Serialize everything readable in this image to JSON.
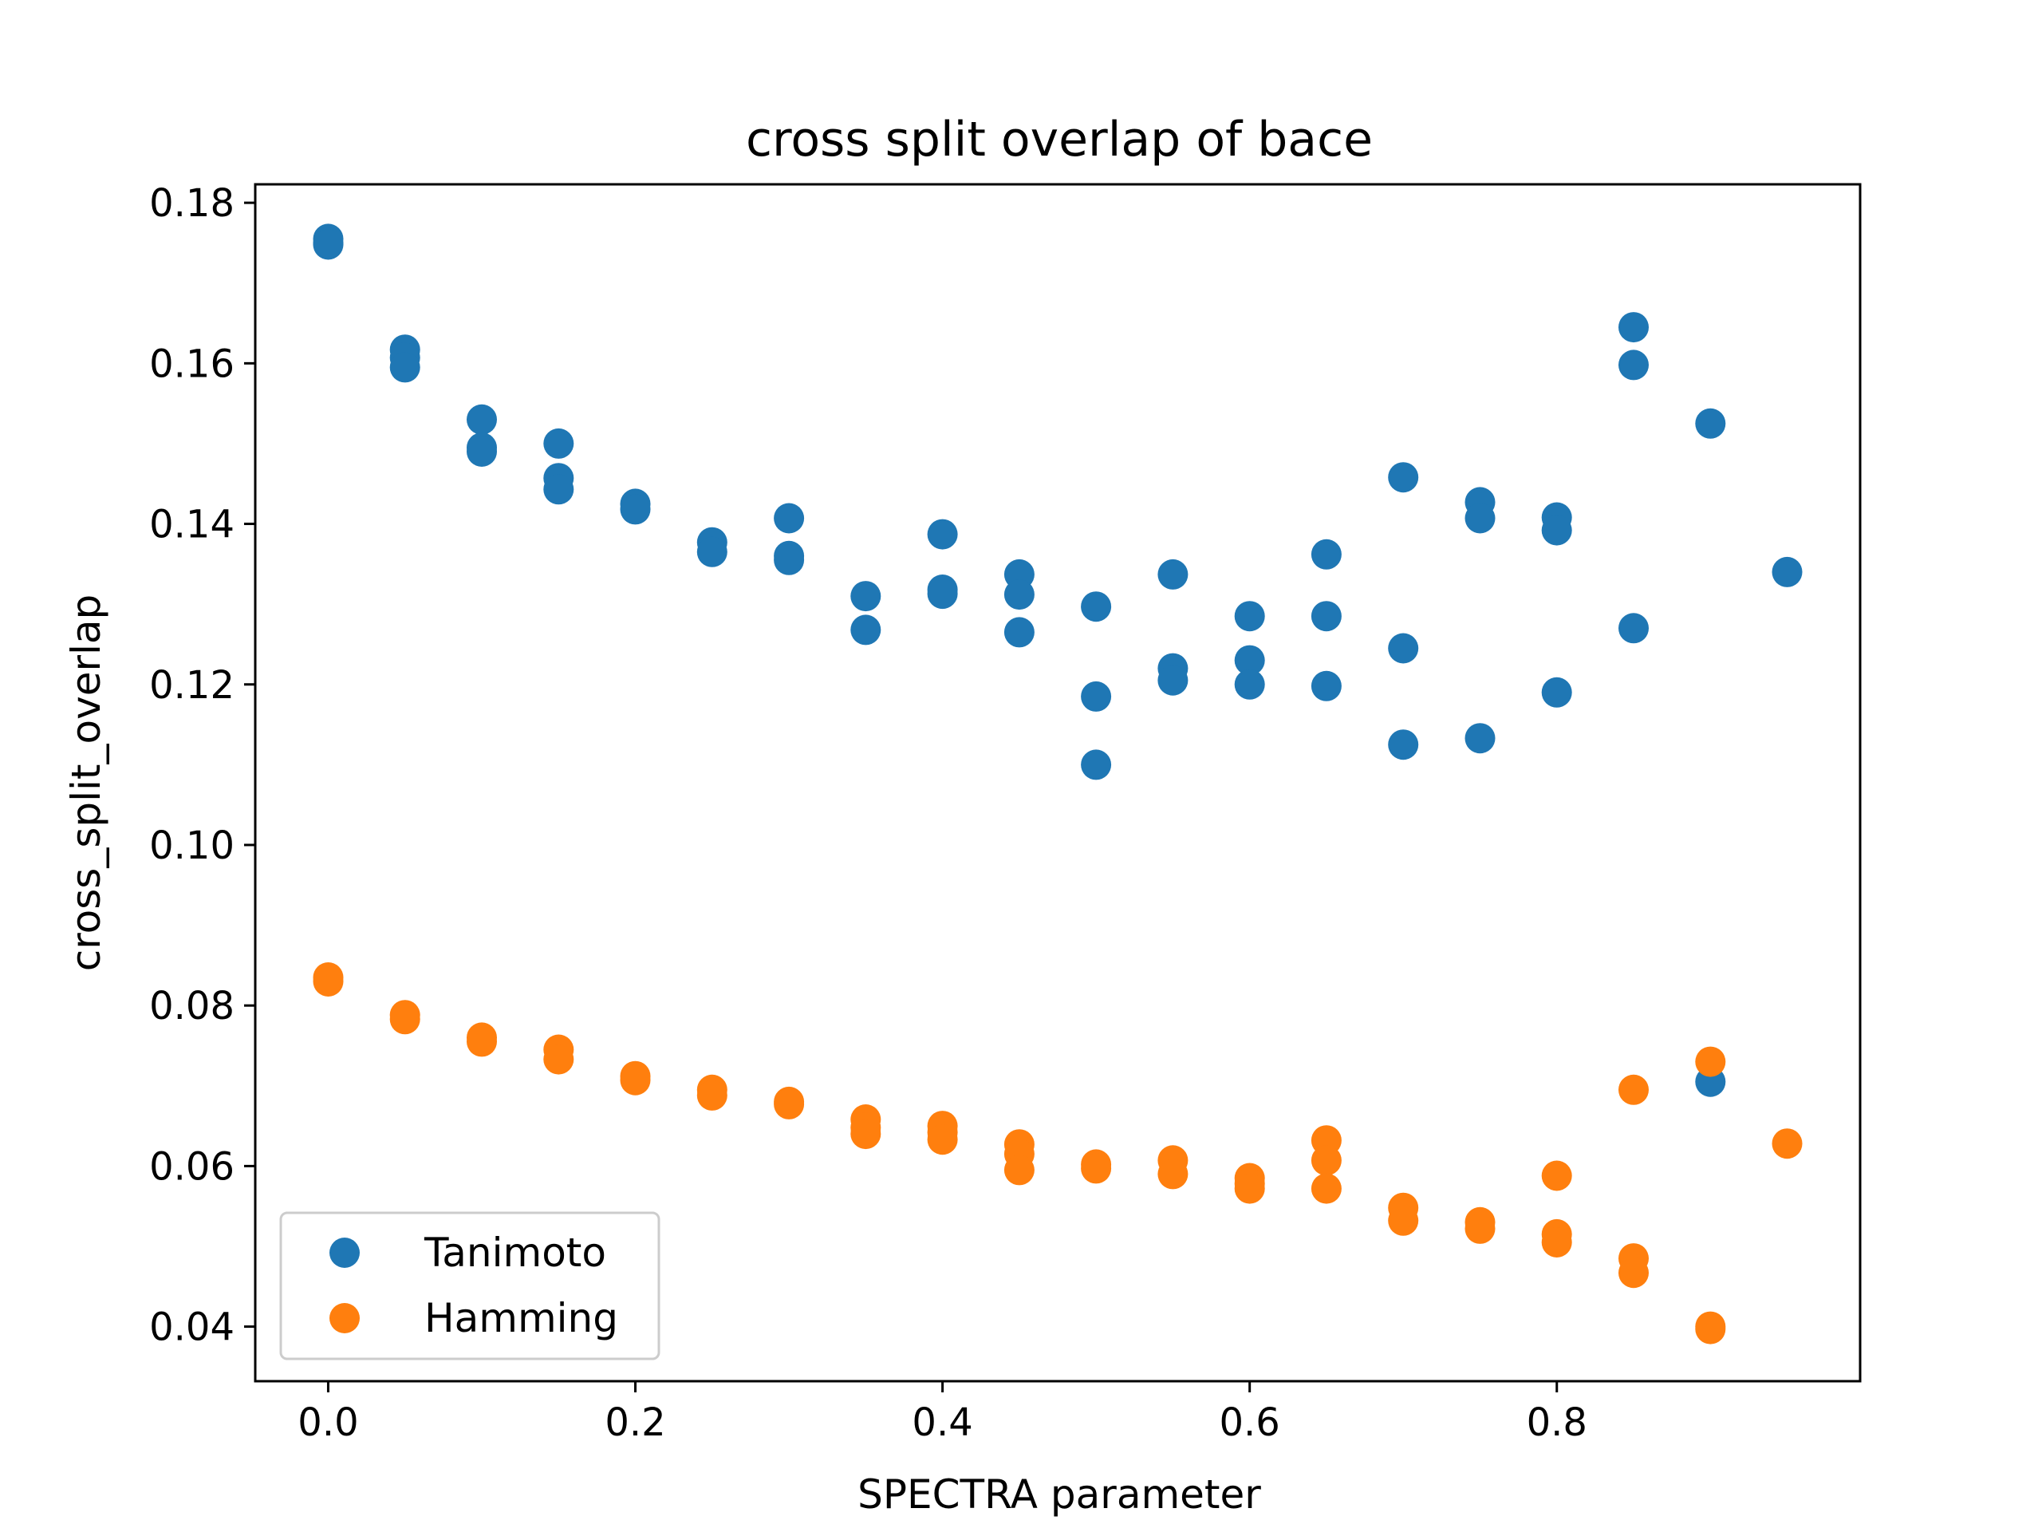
{
  "chart_data": {
    "type": "scatter",
    "title": "cross split overlap of bace",
    "xlabel": "SPECTRA parameter",
    "ylabel": "cross_split_overlap",
    "xlim": [
      -0.0475,
      0.9975
    ],
    "ylim": [
      0.0332,
      0.1823
    ],
    "xticks": [
      0.0,
      0.2,
      0.4,
      0.6,
      0.8
    ],
    "xtick_labels": [
      "0.0",
      "0.2",
      "0.4",
      "0.6",
      "0.8"
    ],
    "yticks": [
      0.04,
      0.06,
      0.08,
      0.1,
      0.12,
      0.14,
      0.16,
      0.18
    ],
    "ytick_labels": [
      "0.04",
      "0.06",
      "0.08",
      "0.10",
      "0.12",
      "0.14",
      "0.16",
      "0.18"
    ],
    "grid": false,
    "legend": {
      "position": "lower-left"
    },
    "series": [
      {
        "name": "Tanimoto",
        "color": "#1f77b4",
        "points": [
          [
            0.0,
            0.1755
          ],
          [
            0.0,
            0.175
          ],
          [
            0.0,
            0.1748
          ],
          [
            0.05,
            0.1617
          ],
          [
            0.05,
            0.1607
          ],
          [
            0.05,
            0.1595
          ],
          [
            0.1,
            0.153
          ],
          [
            0.1,
            0.1495
          ],
          [
            0.1,
            0.149
          ],
          [
            0.15,
            0.15
          ],
          [
            0.15,
            0.1457
          ],
          [
            0.15,
            0.1443
          ],
          [
            0.2,
            0.1425
          ],
          [
            0.2,
            0.1418
          ],
          [
            0.25,
            0.1377
          ],
          [
            0.25,
            0.1365
          ],
          [
            0.3,
            0.1407
          ],
          [
            0.3,
            0.136
          ],
          [
            0.3,
            0.1355
          ],
          [
            0.35,
            0.131
          ],
          [
            0.35,
            0.1268
          ],
          [
            0.4,
            0.1387
          ],
          [
            0.4,
            0.1318
          ],
          [
            0.4,
            0.1313
          ],
          [
            0.45,
            0.1337
          ],
          [
            0.45,
            0.1312
          ],
          [
            0.45,
            0.1265
          ],
          [
            0.5,
            0.1297
          ],
          [
            0.5,
            0.1185
          ],
          [
            0.5,
            0.11
          ],
          [
            0.55,
            0.1337
          ],
          [
            0.55,
            0.122
          ],
          [
            0.55,
            0.1205
          ],
          [
            0.6,
            0.1285
          ],
          [
            0.6,
            0.123
          ],
          [
            0.6,
            0.12
          ],
          [
            0.65,
            0.1362
          ],
          [
            0.65,
            0.1285
          ],
          [
            0.65,
            0.1198
          ],
          [
            0.7,
            0.1458
          ],
          [
            0.7,
            0.1245
          ],
          [
            0.7,
            0.1125
          ],
          [
            0.75,
            0.1427
          ],
          [
            0.75,
            0.1407
          ],
          [
            0.75,
            0.1133
          ],
          [
            0.8,
            0.1408
          ],
          [
            0.8,
            0.1392
          ],
          [
            0.8,
            0.119
          ],
          [
            0.85,
            0.1645
          ],
          [
            0.85,
            0.1598
          ],
          [
            0.85,
            0.127
          ],
          [
            0.9,
            0.1525
          ],
          [
            0.9,
            0.0705
          ],
          [
            0.95,
            0.134
          ]
        ]
      },
      {
        "name": "Hamming",
        "color": "#ff7f0e",
        "points": [
          [
            0.0,
            0.0835
          ],
          [
            0.0,
            0.083
          ],
          [
            0.05,
            0.0788
          ],
          [
            0.05,
            0.0783
          ],
          [
            0.1,
            0.076
          ],
          [
            0.1,
            0.0755
          ],
          [
            0.15,
            0.0745
          ],
          [
            0.15,
            0.0733
          ],
          [
            0.2,
            0.0712
          ],
          [
            0.2,
            0.0707
          ],
          [
            0.25,
            0.0695
          ],
          [
            0.25,
            0.0688
          ],
          [
            0.3,
            0.068
          ],
          [
            0.3,
            0.0677
          ],
          [
            0.35,
            0.0658
          ],
          [
            0.35,
            0.0648
          ],
          [
            0.35,
            0.064
          ],
          [
            0.4,
            0.065
          ],
          [
            0.4,
            0.0642
          ],
          [
            0.4,
            0.0633
          ],
          [
            0.45,
            0.0627
          ],
          [
            0.45,
            0.0615
          ],
          [
            0.45,
            0.0595
          ],
          [
            0.5,
            0.0602
          ],
          [
            0.5,
            0.0597
          ],
          [
            0.55,
            0.0607
          ],
          [
            0.55,
            0.059
          ],
          [
            0.6,
            0.0585
          ],
          [
            0.6,
            0.0578
          ],
          [
            0.6,
            0.0572
          ],
          [
            0.65,
            0.0632
          ],
          [
            0.65,
            0.0607
          ],
          [
            0.65,
            0.0572
          ],
          [
            0.7,
            0.0548
          ],
          [
            0.7,
            0.0532
          ],
          [
            0.75,
            0.053
          ],
          [
            0.75,
            0.0522
          ],
          [
            0.8,
            0.0588
          ],
          [
            0.8,
            0.0515
          ],
          [
            0.8,
            0.0505
          ],
          [
            0.85,
            0.0695
          ],
          [
            0.85,
            0.0485
          ],
          [
            0.85,
            0.0467
          ],
          [
            0.9,
            0.073
          ],
          [
            0.9,
            0.04
          ],
          [
            0.9,
            0.0397
          ],
          [
            0.95,
            0.0628
          ]
        ]
      }
    ]
  }
}
